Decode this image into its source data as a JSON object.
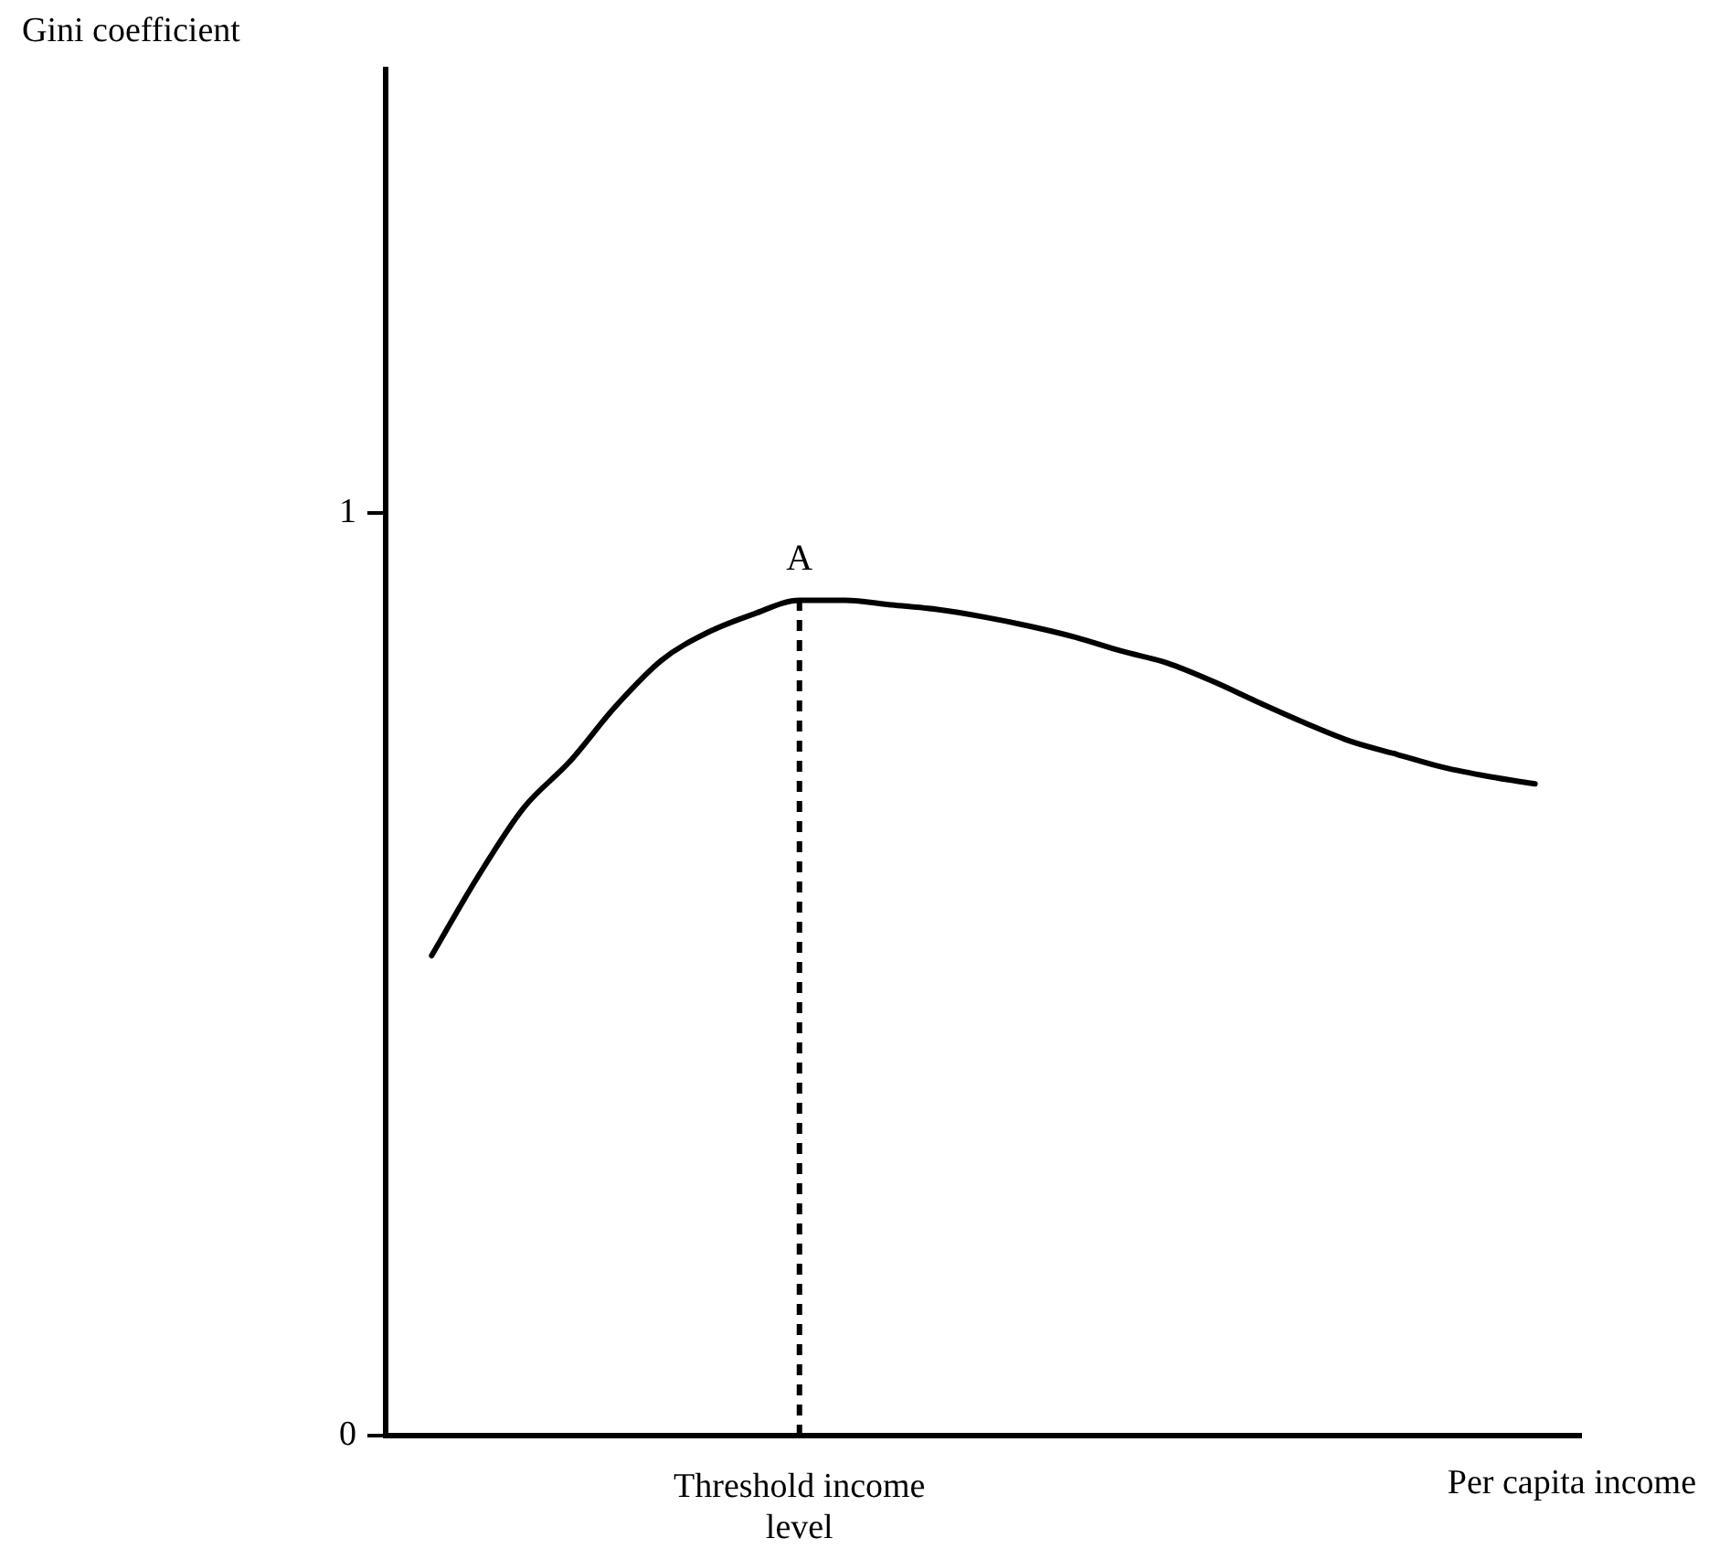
{
  "chart_data": {
    "type": "line",
    "ylabel": "Gini coefficient",
    "xlabel": "Per capita income",
    "categories": [
      null,
      null,
      null,
      null,
      null,
      null,
      null,
      null,
      null,
      "Threshold income level",
      null,
      null,
      null,
      null,
      null,
      null,
      null,
      null,
      null,
      null,
      null,
      null,
      null,
      null,
      null,
      null,
      null
    ],
    "series": [
      {
        "color": "#000000",
        "values": [
          null,
          0.52,
          0.605,
          0.68,
          0.73,
          0.79,
          0.84,
          0.87,
          0.89,
          0.905,
          0.905,
          0.9,
          0.895,
          0.887,
          0.877,
          0.865,
          0.85,
          0.837,
          0.817,
          0.794,
          0.772,
          0.752,
          0.738,
          0.724,
          0.714,
          0.706,
          null
        ]
      }
    ],
    "ylim": [
      0,
      1.48
    ],
    "yticks": [
      0,
      1
    ],
    "ref_lines": [
      {
        "axis": "x",
        "value": "Threshold income level",
        "line_style": "dashed",
        "color": "#000000"
      }
    ],
    "annotations": [
      {
        "text": "A",
        "x": "Threshold income level",
        "y": 0.905
      }
    ],
    "grid": false,
    "legend": false,
    "marker": "none",
    "line_style": "solid"
  }
}
